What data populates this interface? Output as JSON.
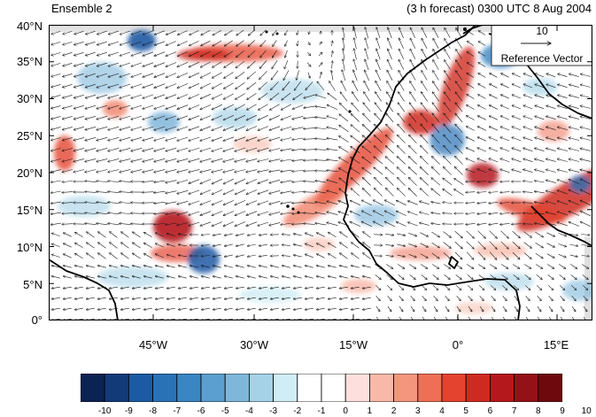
{
  "title_left": "Ensemble 2",
  "title_right": "(3 h forecast) 0300 UTC 8 Aug 2004",
  "map": {
    "lat_labels": [
      "40°N",
      "35°N",
      "30°N",
      "25°N",
      "20°N",
      "15°N",
      "10°N",
      "5°N",
      "0°"
    ],
    "lon_labels": [
      "45°W",
      "30°W",
      "15°W",
      "0°",
      "15°E"
    ],
    "lon_range": [
      -62,
      20
    ],
    "lat_range": [
      0,
      40
    ]
  },
  "reference_vector": {
    "magnitude": "10",
    "label": "Reference Vector"
  },
  "colorbar": {
    "labels": [
      "-10",
      "-9",
      "-8",
      "-7",
      "-6",
      "-5",
      "-4",
      "-3",
      "-2",
      "-1",
      "0",
      "1",
      "2",
      "3",
      "4",
      "5",
      "6",
      "7",
      "8",
      "9",
      "10"
    ],
    "colors": [
      "#0a2352",
      "#123a78",
      "#1c5aa3",
      "#2a72b6",
      "#3a86c2",
      "#5a9fcf",
      "#7fb7da",
      "#a5d2e6",
      "#d0ecf5",
      "#ffffff",
      "#ffffff",
      "#fde0dd",
      "#f8b9a9",
      "#f4967e",
      "#ee6f55",
      "#e4432f",
      "#cf2a22",
      "#b5181c",
      "#941217",
      "#6e0a0e"
    ]
  },
  "colors": {
    "coast": "#000000",
    "arrow": "#1a1a1a",
    "missing": "#cccccc"
  }
}
